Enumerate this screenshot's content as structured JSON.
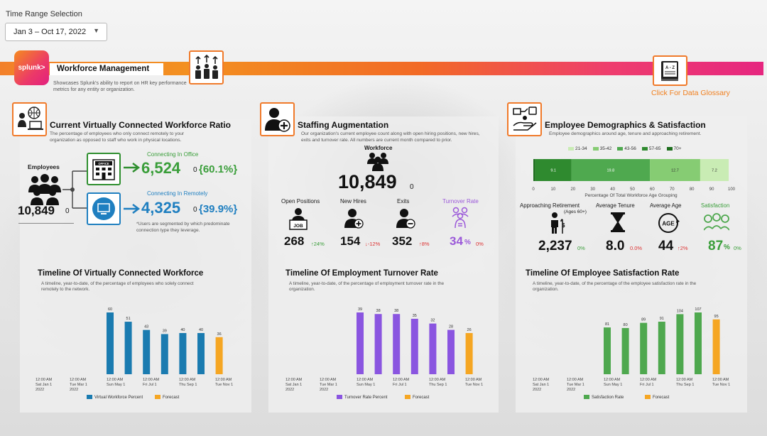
{
  "time_range": {
    "label": "Time Range Selection",
    "value": "Jan 3 – Oct 17, 2022"
  },
  "header": {
    "logo": "splunk>",
    "title": "Workforce Management",
    "subtitle": "Showcases Splunk's ability to report on HR key performance metrics for any entity or organization.",
    "glossary": "Click For Data Glossary",
    "glossary_icon_text": "A - Z"
  },
  "virtual": {
    "title": "Current Virtually Connected Workforce Ratio",
    "desc": "The percentage of employees who only connect remotely to your organization as opposed to staff who work in physical locations.",
    "employees_label": "Employees",
    "employees_value": "10,849",
    "employees_delta": "0",
    "office_label": "Connecting In Office",
    "office_value": "6,524",
    "office_delta": "0",
    "office_pct": "{60.1%}",
    "office_sign": "OFFICE",
    "remote_label": "Connecting In Remotely",
    "remote_value": "4,325",
    "remote_delta": "0",
    "remote_pct": "{39.9%}",
    "note": "*Users are segmented by which predominate connection type they leverage."
  },
  "staffing": {
    "title": "Staffing Augmentation",
    "desc": "Our organization's current employee count along with open hiring positions, new hires, exits and turnover rate. All numbers are current month compared to prior.",
    "workforce_label": "Workforce",
    "workforce_value": "10,849",
    "workforce_delta": "0",
    "kpis": [
      {
        "label": "Open Positions",
        "value": "268",
        "delta": "↑24%",
        "dir": "up"
      },
      {
        "label": "New Hires",
        "value": "154",
        "delta": "↓-12%",
        "dir": "down"
      },
      {
        "label": "Exits",
        "value": "352",
        "delta": "↑8%",
        "dir": "down"
      },
      {
        "label": "Turnover Rate",
        "value": "34",
        "unit": "%",
        "delta": "0%",
        "dir": "flat"
      }
    ]
  },
  "demographics": {
    "title": "Employee Demographics & Satisfaction",
    "desc": "Employee demographics around age, tenure and approaching retirement.",
    "legend": [
      "21-34",
      "35-42",
      "43-56",
      "57-65",
      "70+"
    ],
    "bar_caption": "Percentage Of Total Workforce Age Grouping",
    "kpis": [
      {
        "label": "Approaching Retirement",
        "sublabel": "(Ages 60+)",
        "value": "2,237",
        "delta": "0%"
      },
      {
        "label": "Average Tenure",
        "value": "8.0",
        "delta": "0.0%"
      },
      {
        "label": "Average Age",
        "value": "44",
        "delta": "↑2%"
      },
      {
        "label": "Satisfaction",
        "value": "87",
        "unit": "%",
        "delta": "0%"
      }
    ]
  },
  "timelines": [
    {
      "title": "Timeline Of Virtually Connected Workforce",
      "desc": "A timeline, year-to-date, of the percentage of employees who solely connect remotely to the network.",
      "legend": [
        "Virtual Workforce Percent",
        "Forecast"
      ]
    },
    {
      "title": "Timeline Of Employment Turnover Rate",
      "desc": "A timeline, year-to-date, of the percentage of employment turnover rate in the organization.",
      "legend": [
        "Turnover Rate Percent",
        "Forecast"
      ]
    },
    {
      "title": "Timeline Of Employee Satisfaction Rate",
      "desc": "A timeline, year-to-date, of the percentage of the employee satisfaction rate in the organization.",
      "legend": [
        "Satisfaction Rate",
        "Forecast"
      ]
    }
  ],
  "chart_data": [
    {
      "type": "bar",
      "segments": [
        {
          "name": "21-34",
          "value": 0.5,
          "color": "#1e6e1e"
        },
        {
          "name": "35-42",
          "value": 9.1,
          "color": "#2f8a2f"
        },
        {
          "name": "43-56",
          "value": 19.8,
          "color": "#4fa94f"
        },
        {
          "name": "57-65",
          "value": 12.7,
          "color": "#86cc73"
        },
        {
          "name": "70+",
          "value": 7.2,
          "color": "#c9ecb4"
        }
      ],
      "labels": [
        "",
        "9.1",
        "19.8",
        "12.7",
        "7.2"
      ],
      "xlabel": "Percentage Of Total Workforce Age Grouping",
      "ticks": [
        0,
        10,
        20,
        30,
        40,
        50,
        60,
        70,
        80,
        90,
        100
      ],
      "xlim": [
        0,
        50
      ]
    },
    {
      "type": "bar",
      "title": "Timeline Of Virtually Connected Workforce",
      "x_ticks": [
        "12:00 AM\nSat Jan 1\n2022",
        "12:00 AM\nTue Mar 1\n2022",
        "12:00 AM\nSun May 1",
        "12:00 AM\nFri Jul 1",
        "12:00 AM\nThu Sep 1",
        "12:00 AM\nTue Nov 1"
      ],
      "series": [
        {
          "name": "Virtual Workforce Percent",
          "color": "#1a7bb0",
          "points": [
            {
              "x": "May 2022",
              "y": 60
            },
            {
              "x": "Jun 2022",
              "y": 51
            },
            {
              "x": "Jul 2022",
              "y": 43
            },
            {
              "x": "Aug 2022",
              "y": 39
            },
            {
              "x": "Sep 2022",
              "y": 40
            },
            {
              "x": "Oct 2022",
              "y": 40
            }
          ]
        },
        {
          "name": "Forecast",
          "color": "#f5a623",
          "points": [
            {
              "x": "Nov 2022",
              "y": 36
            }
          ]
        }
      ],
      "ylim": [
        0,
        60
      ]
    },
    {
      "type": "bar",
      "title": "Timeline Of Employment Turnover Rate",
      "x_ticks": [
        "12:00 AM\nSat Jan 1\n2022",
        "12:00 AM\nTue Mar 1\n2022",
        "12:00 AM\nSun May 1",
        "12:00 AM\nFri Jul 1",
        "12:00 AM\nThu Sep 1",
        "12:00 AM\nTue Nov 1"
      ],
      "series": [
        {
          "name": "Turnover Rate Percent",
          "color": "#8a55e0",
          "points": [
            {
              "x": "May 2022",
              "y": 39
            },
            {
              "x": "Jun 2022",
              "y": 38
            },
            {
              "x": "Jul 2022",
              "y": 38
            },
            {
              "x": "Aug 2022",
              "y": 35
            },
            {
              "x": "Sep 2022",
              "y": 32
            },
            {
              "x": "Oct 2022",
              "y": 28
            }
          ]
        },
        {
          "name": "Forecast",
          "color": "#f5a623",
          "points": [
            {
              "x": "Nov 2022",
              "y": 26
            }
          ]
        }
      ],
      "ylim": [
        0,
        39
      ]
    },
    {
      "type": "bar",
      "title": "Timeline Of Employee Satisfaction Rate",
      "x_ticks": [
        "12:00 AM\nSat Jan 1\n2022",
        "12:00 AM\nTue Mar 1\n2022",
        "12:00 AM\nSun May 1",
        "12:00 AM\nFri Jul 1",
        "12:00 AM\nThu Sep 1",
        "12:00 AM\nTue Nov 1"
      ],
      "series": [
        {
          "name": "Satisfaction Rate",
          "color": "#4ea84e",
          "points": [
            {
              "x": "May 2022",
              "y": 81
            },
            {
              "x": "Jun 2022",
              "y": 80
            },
            {
              "x": "Jul 2022",
              "y": 89
            },
            {
              "x": "Aug 2022",
              "y": 91
            },
            {
              "x": "Sep 2022",
              "y": 104
            },
            {
              "x": "Oct 2022",
              "y": 107
            }
          ]
        },
        {
          "name": "Forecast",
          "color": "#f5a623",
          "points": [
            {
              "x": "Nov 2022",
              "y": 95
            }
          ]
        }
      ],
      "ylim": [
        0,
        107
      ]
    }
  ]
}
